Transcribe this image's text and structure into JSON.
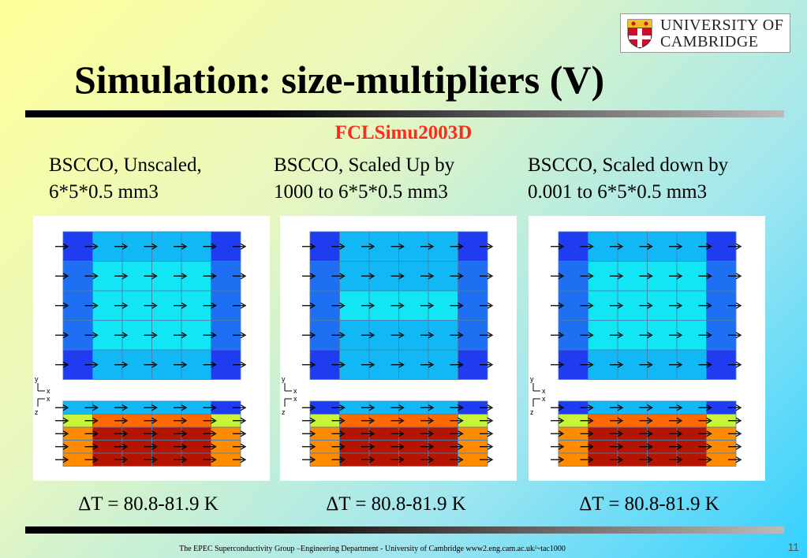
{
  "logo": {
    "line1": "UNIVERSITY OF",
    "line2": "CAMBRIDGE"
  },
  "title": "Simulation: size-multipliers (V)",
  "subtitle": "FCLSimu2003D",
  "panels": [
    {
      "caption": "BSCCO, Unscaled,\n6*5*0.5 mm3",
      "delta_t": "ΔT = 80.8-81.9 K",
      "top_map": [
        [
          "#1f3cf0",
          "#12b8f5",
          "#12b8f5",
          "#12b8f5",
          "#12b8f5",
          "#1f3cf0"
        ],
        [
          "#1f6ff2",
          "#12e6f5",
          "#12e6f5",
          "#12e6f5",
          "#12e6f5",
          "#1f6ff2"
        ],
        [
          "#1f6ff2",
          "#12e6f5",
          "#12e6f5",
          "#12e6f5",
          "#12e6f5",
          "#1f6ff2"
        ],
        [
          "#1f6ff2",
          "#12e6f5",
          "#12e6f5",
          "#12e6f5",
          "#12e6f5",
          "#1f6ff2"
        ],
        [
          "#1f3cf0",
          "#12b8f5",
          "#12b8f5",
          "#12b8f5",
          "#12b8f5",
          "#1f3cf0"
        ]
      ],
      "bottom_map": [
        [
          "#12b8f5",
          "#12b8f5",
          "#12b8f5",
          "#12b8f5",
          "#12b8f5",
          "#1f3cf0"
        ],
        [
          "#c8f53a",
          "#ff6a00",
          "#ff6a00",
          "#ff6a00",
          "#ff6a00",
          "#c8f53a"
        ],
        [
          "#ff8c00",
          "#b41400",
          "#b41400",
          "#b41400",
          "#b41400",
          "#ff8c00"
        ],
        [
          "#ff8c00",
          "#b41400",
          "#b41400",
          "#b41400",
          "#b41400",
          "#ff8c00"
        ],
        [
          "#ff8c00",
          "#b41400",
          "#b41400",
          "#b41400",
          "#b41400",
          "#ff8c00"
        ]
      ]
    },
    {
      "caption": "BSCCO, Scaled Up by\n1000 to 6*5*0.5 mm3",
      "delta_t": "ΔT = 80.8-81.9 K",
      "top_map": [
        [
          "#1f3cf0",
          "#12b8f5",
          "#12b8f5",
          "#12b8f5",
          "#12b8f5",
          "#1f3cf0"
        ],
        [
          "#1f6ff2",
          "#12b8f5",
          "#12b8f5",
          "#12b8f5",
          "#12b8f5",
          "#1f6ff2"
        ],
        [
          "#1f6ff2",
          "#12e6f5",
          "#12e6f5",
          "#12e6f5",
          "#12e6f5",
          "#1f6ff2"
        ],
        [
          "#1f6ff2",
          "#12b8f5",
          "#12b8f5",
          "#12b8f5",
          "#12b8f5",
          "#1f6ff2"
        ],
        [
          "#1f3cf0",
          "#12b8f5",
          "#12b8f5",
          "#12b8f5",
          "#12b8f5",
          "#1f3cf0"
        ]
      ],
      "bottom_map": [
        [
          "#1f3cf0",
          "#12b8f5",
          "#12b8f5",
          "#12b8f5",
          "#12b8f5",
          "#1f3cf0"
        ],
        [
          "#c8f53a",
          "#ff6a00",
          "#ff6a00",
          "#ff6a00",
          "#ff6a00",
          "#c8f53a"
        ],
        [
          "#ff8c00",
          "#b41400",
          "#b41400",
          "#b41400",
          "#b41400",
          "#ff8c00"
        ],
        [
          "#ff8c00",
          "#b41400",
          "#b41400",
          "#b41400",
          "#b41400",
          "#ff8c00"
        ],
        [
          "#ff8c00",
          "#b41400",
          "#b41400",
          "#b41400",
          "#b41400",
          "#ff8c00"
        ]
      ]
    },
    {
      "caption": "BSCCO, Scaled down by\n0.001 to 6*5*0.5 mm3",
      "delta_t": "ΔT = 80.8-81.9 K",
      "top_map": [
        [
          "#1f3cf0",
          "#12b8f5",
          "#12b8f5",
          "#12b8f5",
          "#12b8f5",
          "#1f3cf0"
        ],
        [
          "#1f6ff2",
          "#12e6f5",
          "#12e6f5",
          "#12e6f5",
          "#12e6f5",
          "#1f6ff2"
        ],
        [
          "#1f6ff2",
          "#12e6f5",
          "#12e6f5",
          "#12e6f5",
          "#12e6f5",
          "#1f6ff2"
        ],
        [
          "#1f6ff2",
          "#12e6f5",
          "#12e6f5",
          "#12e6f5",
          "#12e6f5",
          "#1f6ff2"
        ],
        [
          "#1f3cf0",
          "#12b8f5",
          "#12b8f5",
          "#12b8f5",
          "#12b8f5",
          "#1f3cf0"
        ]
      ],
      "bottom_map": [
        [
          "#1f3cf0",
          "#12b8f5",
          "#12b8f5",
          "#12b8f5",
          "#12b8f5",
          "#1f3cf0"
        ],
        [
          "#c8f53a",
          "#ff6a00",
          "#ff6a00",
          "#ff6a00",
          "#ff6a00",
          "#c8f53a"
        ],
        [
          "#ff8c00",
          "#b41400",
          "#b41400",
          "#b41400",
          "#b41400",
          "#ff8c00"
        ],
        [
          "#ff8c00",
          "#b41400",
          "#b41400",
          "#b41400",
          "#b41400",
          "#ff8c00"
        ],
        [
          "#ff8c00",
          "#b41400",
          "#b41400",
          "#b41400",
          "#b41400",
          "#ff8c00"
        ]
      ]
    }
  ],
  "axis_labels": {
    "y": "y",
    "x": "x",
    "z": "z"
  },
  "footer": "The EPEC Superconductivity Group –Engineering Department -  University of Cambridge www2.eng.cam.ac.uk/~tac1000",
  "page_number": "11"
}
